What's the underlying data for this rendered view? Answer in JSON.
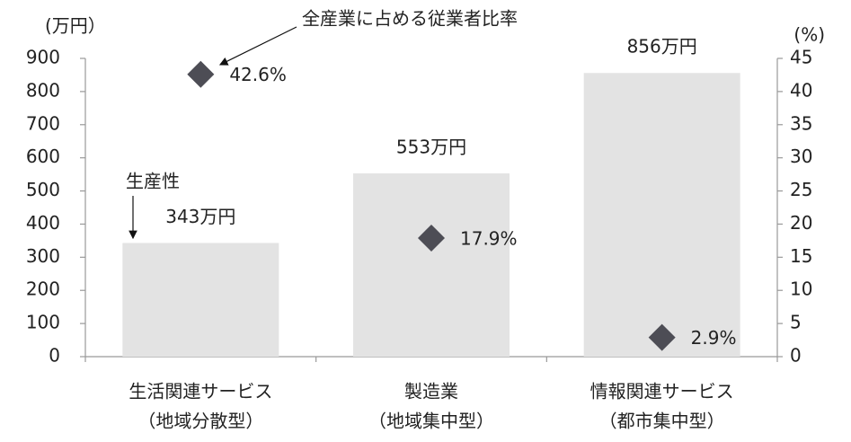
{
  "chart_data": {
    "type": "bar",
    "categories": [
      [
        "生活関連サービス",
        "（地域分散型）"
      ],
      [
        "製造業",
        "（地域集中型）"
      ],
      [
        "情報関連サービス",
        "（都市集中型）"
      ]
    ],
    "series": [
      {
        "name": "生産性",
        "type": "bar",
        "color": "#e3e3e3",
        "values": [
          343,
          553,
          856
        ],
        "value_labels": [
          "343万円",
          "553万円",
          "856万円"
        ]
      },
      {
        "name": "全産業に占める従業者比率",
        "type": "scatter",
        "axis": "y2",
        "color": "#4d4d55",
        "values": [
          42.6,
          17.9,
          2.9
        ],
        "value_labels": [
          "42.6%",
          "17.9%",
          "2.9%"
        ]
      }
    ],
    "y_label": "(万円）",
    "y2_label": "(%)",
    "ylim": [
      0,
      900
    ],
    "yticks": [
      0,
      100,
      200,
      300,
      400,
      500,
      600,
      700,
      800,
      900
    ],
    "y2lim": [
      0,
      45
    ],
    "y2ticks": [
      0,
      5,
      10,
      15,
      20,
      25,
      30,
      35,
      40,
      45
    ]
  }
}
